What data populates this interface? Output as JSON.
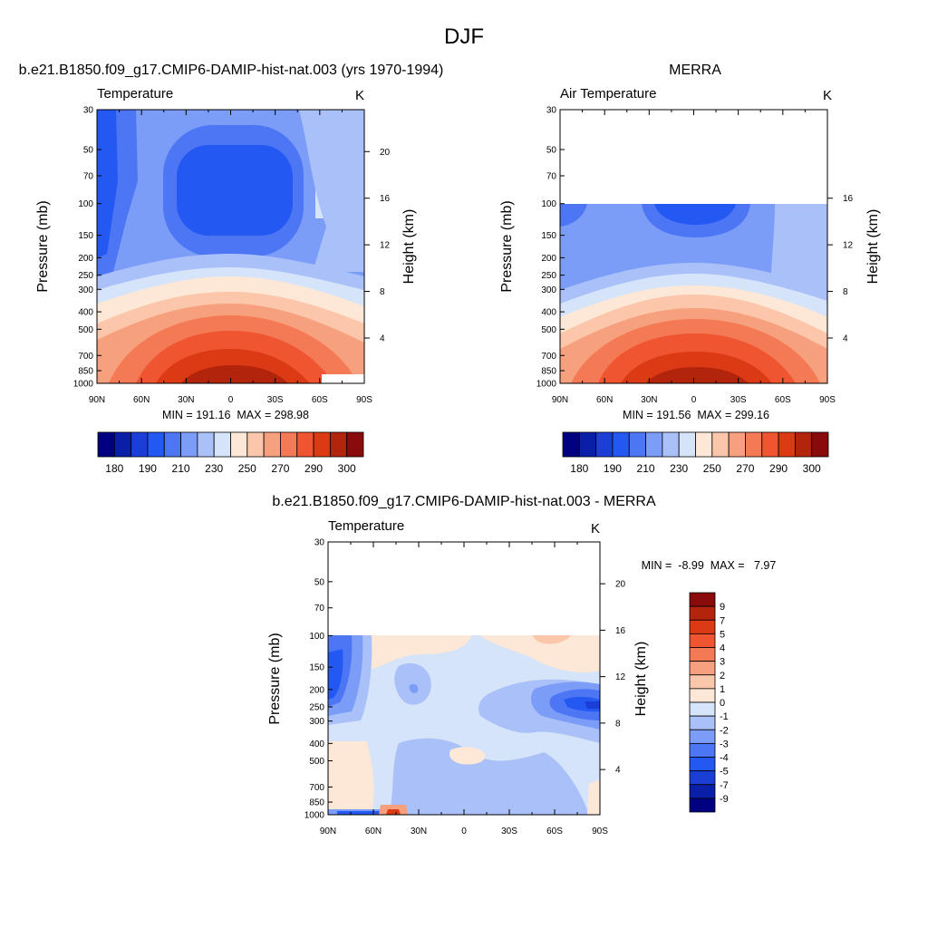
{
  "figure_title": "DJF",
  "chart_data": [
    {
      "type": "heatmap",
      "id": "model",
      "title": "b.e21.B1850.f09_g17.CMIP6-DAMIP-hist-nat.003 (yrs 1970-1994)",
      "subtitle_left": "Temperature",
      "subtitle_right": "K",
      "xlabel": "",
      "ylabel": "Pressure (mb)",
      "ylabel_right": "Height (km)",
      "x_ticks": [
        "90N",
        "60N",
        "30N",
        "0",
        "30S",
        "60S",
        "90S"
      ],
      "x_values": [
        90,
        60,
        30,
        0,
        -30,
        -60,
        -90
      ],
      "y_ticks": [
        "30",
        "50",
        "70",
        "100",
        "150",
        "200",
        "250",
        "300",
        "400",
        "500",
        "700",
        "850",
        "1000"
      ],
      "y_values": [
        30,
        50,
        70,
        100,
        150,
        200,
        250,
        300,
        400,
        500,
        700,
        850,
        1000
      ],
      "y_scale": "log",
      "ylim": [
        1000,
        30
      ],
      "height_ticks": [
        "20",
        "16",
        "12",
        "8",
        "4"
      ],
      "height_values": [
        20,
        16,
        12,
        8,
        4
      ],
      "stats": "MIN = 191.16  MAX = 298.98",
      "min": 191.16,
      "max": 298.98,
      "colorbar": {
        "orientation": "horizontal",
        "labels": [
          "180",
          "190",
          "210",
          "230",
          "250",
          "270",
          "290",
          "300"
        ],
        "colors": [
          "#000080",
          "#0a1fa8",
          "#1a3ed6",
          "#2458f2",
          "#4d76f5",
          "#7b9cf7",
          "#a9c1f8",
          "#d6e4fa",
          "#fde8d7",
          "#fbc6a9",
          "#f7a07e",
          "#f47a55",
          "#ef5530",
          "#dc3a14",
          "#b3240d",
          "#8a0b0b"
        ]
      }
    },
    {
      "type": "heatmap",
      "id": "obs",
      "title": "MERRA",
      "subtitle_left": "Air Temperature",
      "subtitle_right": "K",
      "xlabel": "",
      "ylabel": "Pressure (mb)",
      "ylabel_right": "Height (km)",
      "x_ticks": [
        "90N",
        "60N",
        "30N",
        "0",
        "30S",
        "60S",
        "90S"
      ],
      "x_values": [
        90,
        60,
        30,
        0,
        -30,
        -60,
        -90
      ],
      "y_ticks": [
        "30",
        "50",
        "70",
        "100",
        "150",
        "200",
        "250",
        "300",
        "400",
        "500",
        "700",
        "850",
        "1000"
      ],
      "y_values": [
        30,
        50,
        70,
        100,
        150,
        200,
        250,
        300,
        400,
        500,
        700,
        850,
        1000
      ],
      "y_scale": "log",
      "ylim": [
        1000,
        30
      ],
      "data_top": 100,
      "height_ticks": [
        "16",
        "12",
        "8",
        "4"
      ],
      "height_values": [
        16,
        12,
        8,
        4
      ],
      "stats": "MIN = 191.56  MAX = 299.16",
      "min": 191.56,
      "max": 299.16,
      "colorbar": {
        "orientation": "horizontal",
        "labels": [
          "180",
          "190",
          "210",
          "230",
          "250",
          "270",
          "290",
          "300"
        ],
        "colors": [
          "#000080",
          "#0a1fa8",
          "#1a3ed6",
          "#2458f2",
          "#4d76f5",
          "#7b9cf7",
          "#a9c1f8",
          "#d6e4fa",
          "#fde8d7",
          "#fbc6a9",
          "#f7a07e",
          "#f47a55",
          "#ef5530",
          "#dc3a14",
          "#b3240d",
          "#8a0b0b"
        ]
      }
    },
    {
      "type": "heatmap",
      "id": "diff",
      "title": "b.e21.B1850.f09_g17.CMIP6-DAMIP-hist-nat.003 - MERRA",
      "subtitle_left": "Temperature",
      "subtitle_right": "K",
      "xlabel": "",
      "ylabel": "Pressure (mb)",
      "ylabel_right": "Height (km)",
      "x_ticks": [
        "90N",
        "60N",
        "30N",
        "0",
        "30S",
        "60S",
        "90S"
      ],
      "x_values": [
        90,
        60,
        30,
        0,
        -30,
        -60,
        -90
      ],
      "y_ticks": [
        "30",
        "50",
        "70",
        "100",
        "150",
        "200",
        "250",
        "300",
        "400",
        "500",
        "700",
        "850",
        "1000"
      ],
      "y_values": [
        30,
        50,
        70,
        100,
        150,
        200,
        250,
        300,
        400,
        500,
        700,
        850,
        1000
      ],
      "y_scale": "log",
      "ylim": [
        1000,
        30
      ],
      "data_top": 100,
      "height_ticks": [
        "20",
        "16",
        "12",
        "8",
        "4"
      ],
      "height_values": [
        20,
        16,
        12,
        8,
        4
      ],
      "stats": "MIN =  -8.99  MAX =   7.97",
      "min": -8.99,
      "max": 7.97,
      "colorbar": {
        "orientation": "vertical",
        "labels": [
          "9",
          "7",
          "5",
          "4",
          "3",
          "2",
          "1",
          "0",
          "-1",
          "-2",
          "-3",
          "-4",
          "-5",
          "-7",
          "-9"
        ],
        "colors": [
          "#8a0b0b",
          "#b3240d",
          "#dc3a14",
          "#ef5530",
          "#f47a55",
          "#f7a07e",
          "#fbc6a9",
          "#fde8d7",
          "#d6e4fa",
          "#a9c1f8",
          "#7b9cf7",
          "#4d76f5",
          "#2458f2",
          "#1a3ed6",
          "#0a1fa8",
          "#000080"
        ]
      }
    }
  ]
}
